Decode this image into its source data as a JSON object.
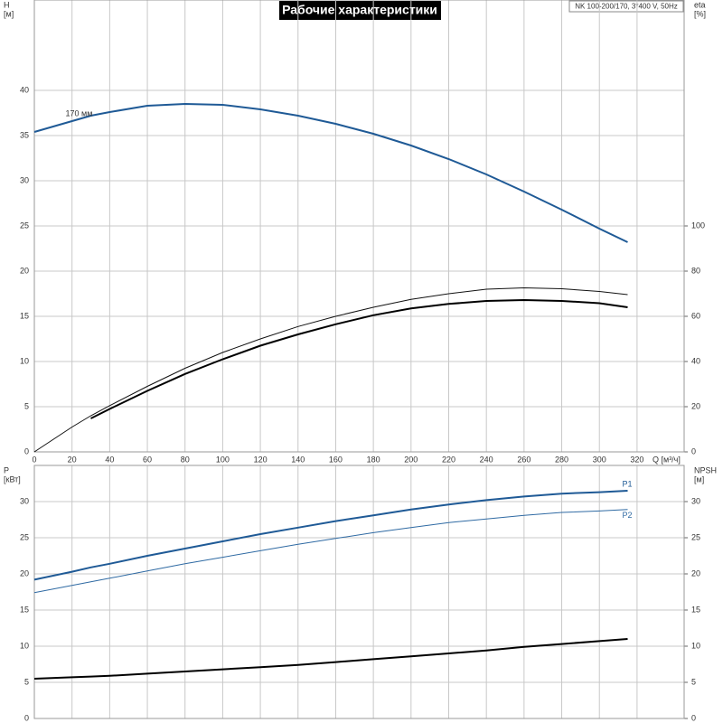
{
  "title": "Рабочие характеристики",
  "info": "NK 100-200/170, 3*400 V, 50Hz",
  "chart_data": [
    {
      "type": "line",
      "ylabel": "H",
      "yunit": "[м]",
      "y2label": "eta",
      "y2unit": "[%]",
      "xlabel": "Q [м³/ч]",
      "x": [
        0,
        20,
        30,
        40,
        60,
        80,
        100,
        120,
        140,
        160,
        180,
        200,
        220,
        240,
        260,
        280,
        300,
        315
      ],
      "xlim": [
        0,
        345
      ],
      "xticks": [
        0,
        20,
        40,
        60,
        80,
        100,
        120,
        140,
        160,
        180,
        200,
        220,
        240,
        260,
        280,
        300,
        320
      ],
      "ylim": [
        0,
        50
      ],
      "yticks": [
        0,
        5,
        10,
        15,
        20,
        25,
        30,
        35,
        40
      ],
      "y2lim": [
        0,
        200
      ],
      "y2ticks": [
        0,
        20,
        40,
        60,
        80,
        100
      ],
      "grid": true,
      "series": [
        {
          "name": "170 мм",
          "color": "#1f5a96",
          "values": [
            35.4,
            36.6,
            37.2,
            37.6,
            38.3,
            38.5,
            38.4,
            37.9,
            37.2,
            36.3,
            35.2,
            33.9,
            32.4,
            30.7,
            28.8,
            26.8,
            24.7,
            23.2
          ]
        },
        {
          "color": "#111111",
          "axis": "y2",
          "values": [
            0,
            11,
            16,
            20.5,
            29,
            37,
            44,
            50,
            55.5,
            60,
            64,
            67.5,
            70,
            72,
            72.6,
            72.2,
            71,
            69.6
          ]
        },
        {
          "color": "#000000",
          "axis": "y2",
          "values": [
            null,
            null,
            14.8,
            19,
            27,
            34.5,
            41,
            47,
            52,
            56.5,
            60.5,
            63.5,
            65.5,
            66.8,
            67.2,
            66.8,
            65.8,
            64
          ]
        }
      ]
    },
    {
      "type": "line",
      "ylabel": "P",
      "yunit": "[кВт]",
      "y2label": "NPSH",
      "y2unit": "[м]",
      "x": [
        0,
        20,
        30,
        40,
        60,
        80,
        100,
        120,
        140,
        160,
        180,
        200,
        220,
        240,
        260,
        280,
        300,
        315
      ],
      "xlim": [
        0,
        345
      ],
      "ylim": [
        0,
        35
      ],
      "yticks": [
        0,
        5,
        10,
        15,
        20,
        25,
        30
      ],
      "y2lim": [
        0,
        35
      ],
      "y2ticks": [
        0,
        5,
        10,
        15,
        20,
        25,
        30
      ],
      "grid": true,
      "series": [
        {
          "name": "P1",
          "color": "#1f5a96",
          "values": [
            19.2,
            20.3,
            20.9,
            21.4,
            22.5,
            23.5,
            24.5,
            25.5,
            26.4,
            27.3,
            28.1,
            28.9,
            29.6,
            30.2,
            30.7,
            31.1,
            31.3,
            31.5
          ]
        },
        {
          "name": "P2",
          "color": "#2f6aa3",
          "values": [
            17.4,
            18.4,
            18.9,
            19.4,
            20.4,
            21.4,
            22.3,
            23.2,
            24.1,
            24.9,
            25.7,
            26.4,
            27.1,
            27.6,
            28.1,
            28.5,
            28.7,
            28.9
          ]
        },
        {
          "color": "#000000",
          "axis": "y2",
          "values": [
            5.5,
            5.7,
            5.8,
            5.9,
            6.2,
            6.5,
            6.8,
            7.1,
            7.4,
            7.8,
            8.2,
            8.6,
            9.0,
            9.4,
            9.9,
            10.3,
            10.7,
            11.0
          ]
        }
      ]
    }
  ]
}
